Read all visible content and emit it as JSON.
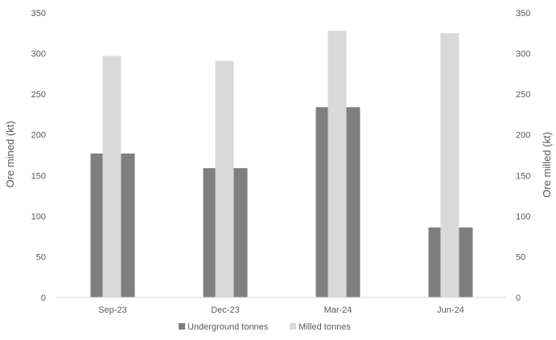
{
  "chart_data": {
    "type": "bar",
    "title": "",
    "categories": [
      "Sep-23",
      "Dec-23",
      "Mar-24",
      "Jun-24"
    ],
    "series": [
      {
        "name": "Underground tonnes",
        "axis": "left",
        "color": "#7f7f7f",
        "values": [
          177,
          159,
          234,
          86
        ]
      },
      {
        "name": "Milled tonnes",
        "axis": "right",
        "color": "#d9d9d9",
        "values": [
          297,
          291,
          328,
          325
        ]
      }
    ],
    "y_left": {
      "label": "Ore mined (kt)",
      "ylim": [
        0,
        350
      ],
      "ticks": [
        0,
        50,
        100,
        150,
        200,
        250,
        300,
        350
      ]
    },
    "y_right": {
      "label": "Ore milled (kt)",
      "ylim": [
        0,
        350
      ],
      "ticks": [
        0,
        50,
        100,
        150,
        200,
        250,
        300,
        350
      ]
    },
    "grid": false,
    "legend_position": "bottom"
  }
}
